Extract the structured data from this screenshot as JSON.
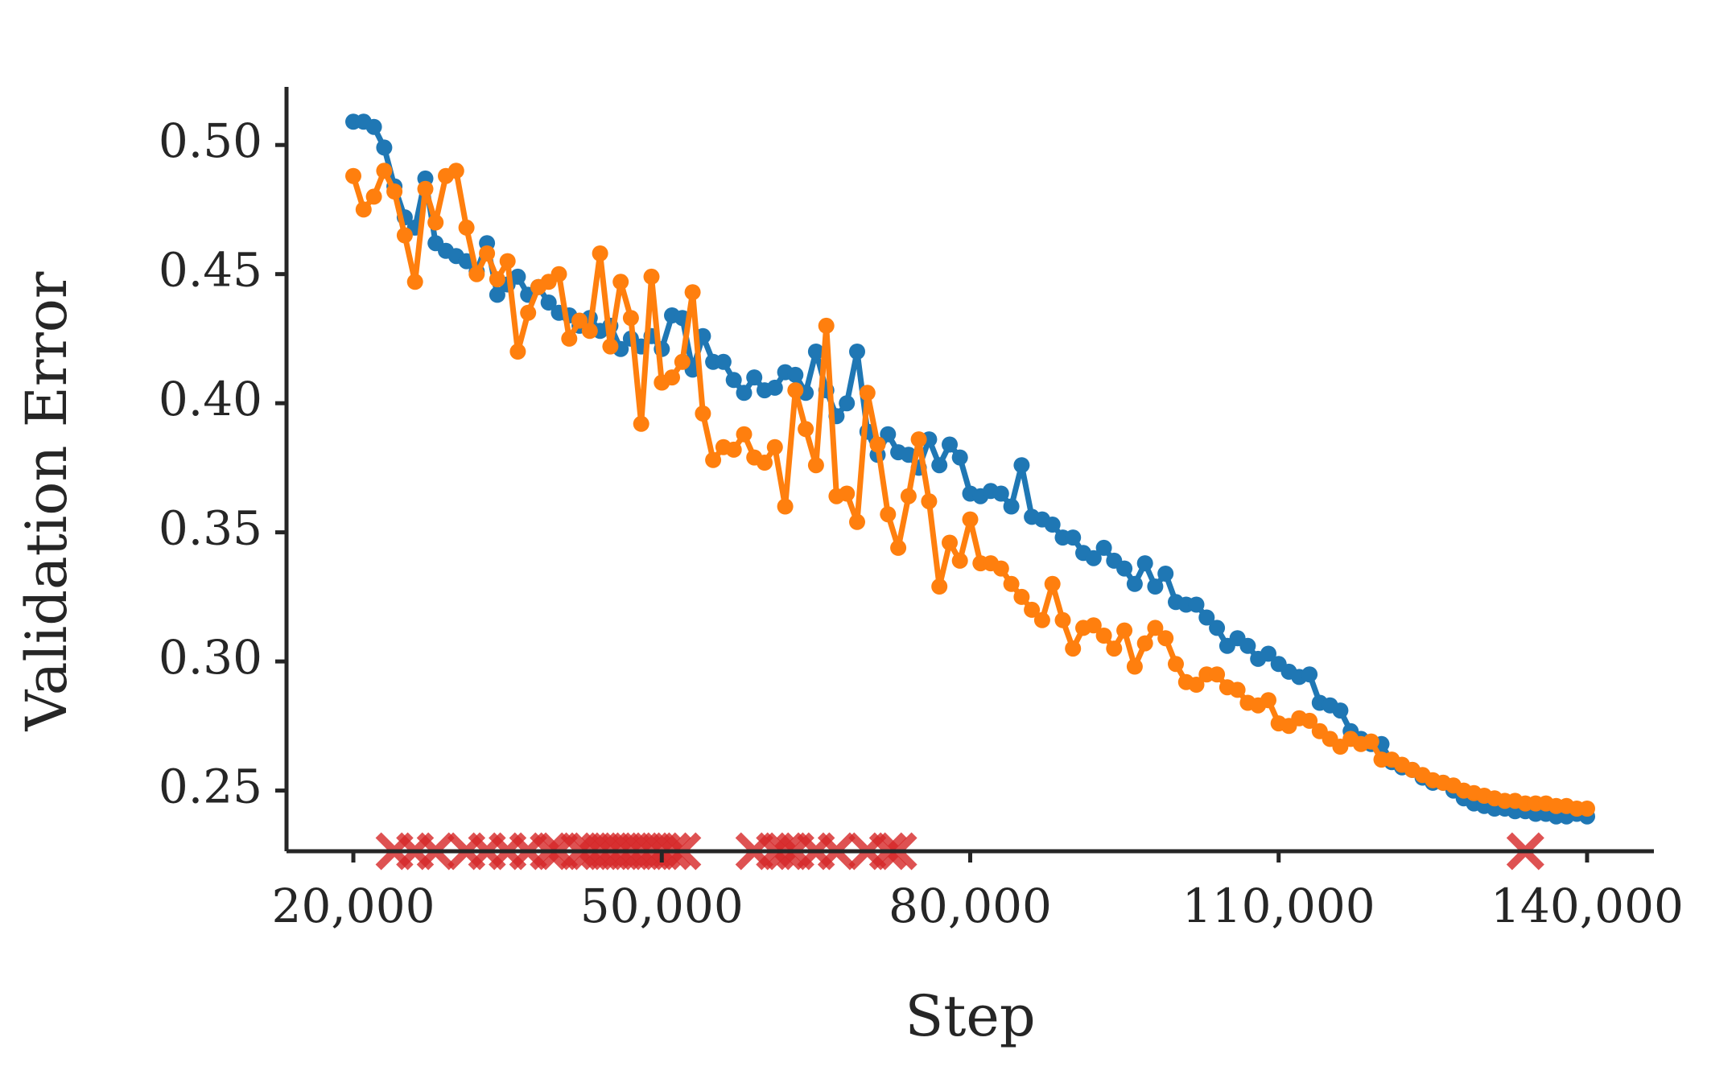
{
  "chart_data": {
    "type": "line",
    "title": "",
    "xlabel": "Step",
    "ylabel": "Validation Error",
    "xlim": [
      13500,
      146500
    ],
    "ylim": [
      0.2265,
      0.5225
    ],
    "xticks": [
      20000,
      50000,
      80000,
      110000,
      140000
    ],
    "xtick_labels": [
      "20,000",
      "50,000",
      "80,000",
      "110,000",
      "140,000"
    ],
    "yticks": [
      0.25,
      0.3,
      0.35,
      0.4,
      0.45,
      0.5
    ],
    "ytick_labels": [
      "0.25",
      "0.30",
      "0.35",
      "0.40",
      "0.45",
      "0.50"
    ],
    "grid": false,
    "legend": "none",
    "colors": {
      "series_1": "#1f77b4",
      "series_2": "#ff7f0e",
      "markers": "#d62728",
      "axis": "#262626"
    },
    "series": [
      {
        "color": "#1f77b4",
        "points": [
          [
            20000,
            0.509
          ],
          [
            21000,
            0.509
          ],
          [
            22000,
            0.507
          ],
          [
            23000,
            0.499
          ],
          [
            24000,
            0.484
          ],
          [
            25000,
            0.472
          ],
          [
            26000,
            0.468
          ],
          [
            27000,
            0.487
          ],
          [
            28000,
            0.462
          ],
          [
            29000,
            0.459
          ],
          [
            30000,
            0.457
          ],
          [
            31000,
            0.455
          ],
          [
            32000,
            0.451
          ],
          [
            33000,
            0.462
          ],
          [
            34000,
            0.442
          ],
          [
            35000,
            0.446
          ],
          [
            36000,
            0.449
          ],
          [
            37000,
            0.442
          ],
          [
            38000,
            0.445
          ],
          [
            39000,
            0.439
          ],
          [
            40000,
            0.435
          ],
          [
            41000,
            0.434
          ],
          [
            42000,
            0.43
          ],
          [
            43000,
            0.433
          ],
          [
            44000,
            0.428
          ],
          [
            45000,
            0.43
          ],
          [
            46000,
            0.421
          ],
          [
            47000,
            0.425
          ],
          [
            48000,
            0.422
          ],
          [
            49000,
            0.426
          ],
          [
            50000,
            0.421
          ],
          [
            51000,
            0.434
          ],
          [
            52000,
            0.433
          ],
          [
            53000,
            0.413
          ],
          [
            54000,
            0.426
          ],
          [
            55000,
            0.416
          ],
          [
            56000,
            0.416
          ],
          [
            57000,
            0.409
          ],
          [
            58000,
            0.404
          ],
          [
            59000,
            0.41
          ],
          [
            60000,
            0.405
          ],
          [
            61000,
            0.406
          ],
          [
            62000,
            0.412
          ],
          [
            63000,
            0.411
          ],
          [
            64000,
            0.404
          ],
          [
            65000,
            0.42
          ],
          [
            66000,
            0.405
          ],
          [
            67000,
            0.395
          ],
          [
            68000,
            0.4
          ],
          [
            69000,
            0.42
          ],
          [
            70000,
            0.389
          ],
          [
            71000,
            0.38
          ],
          [
            72000,
            0.388
          ],
          [
            73000,
            0.381
          ],
          [
            74000,
            0.38
          ],
          [
            75000,
            0.375
          ],
          [
            76000,
            0.386
          ],
          [
            77000,
            0.376
          ],
          [
            78000,
            0.384
          ],
          [
            79000,
            0.379
          ],
          [
            80000,
            0.365
          ],
          [
            81000,
            0.364
          ],
          [
            82000,
            0.366
          ],
          [
            83000,
            0.365
          ],
          [
            84000,
            0.36
          ],
          [
            85000,
            0.376
          ],
          [
            86000,
            0.356
          ],
          [
            87000,
            0.355
          ],
          [
            88000,
            0.353
          ],
          [
            89000,
            0.348
          ],
          [
            90000,
            0.348
          ],
          [
            91000,
            0.342
          ],
          [
            92000,
            0.34
          ],
          [
            93000,
            0.344
          ],
          [
            94000,
            0.339
          ],
          [
            95000,
            0.336
          ],
          [
            96000,
            0.33
          ],
          [
            97000,
            0.338
          ],
          [
            98000,
            0.329
          ],
          [
            99000,
            0.334
          ],
          [
            100000,
            0.323
          ],
          [
            101000,
            0.322
          ],
          [
            102000,
            0.322
          ],
          [
            103000,
            0.317
          ],
          [
            104000,
            0.313
          ],
          [
            105000,
            0.306
          ],
          [
            106000,
            0.309
          ],
          [
            107000,
            0.306
          ],
          [
            108000,
            0.301
          ],
          [
            109000,
            0.303
          ],
          [
            110000,
            0.299
          ],
          [
            111000,
            0.296
          ],
          [
            112000,
            0.294
          ],
          [
            113000,
            0.295
          ],
          [
            114000,
            0.284
          ],
          [
            115000,
            0.283
          ],
          [
            116000,
            0.281
          ],
          [
            117000,
            0.273
          ],
          [
            118000,
            0.27
          ],
          [
            119000,
            0.268
          ],
          [
            120000,
            0.268
          ],
          [
            121000,
            0.261
          ],
          [
            122000,
            0.259
          ],
          [
            123000,
            0.258
          ],
          [
            124000,
            0.255
          ],
          [
            125000,
            0.253
          ],
          [
            126000,
            0.253
          ],
          [
            127000,
            0.25
          ],
          [
            128000,
            0.247
          ],
          [
            129000,
            0.245
          ],
          [
            130000,
            0.244
          ],
          [
            131000,
            0.243
          ],
          [
            132000,
            0.243
          ],
          [
            133000,
            0.242
          ],
          [
            134000,
            0.242
          ],
          [
            135000,
            0.241
          ],
          [
            136000,
            0.241
          ],
          [
            137000,
            0.24
          ],
          [
            138000,
            0.24
          ],
          [
            139000,
            0.241
          ],
          [
            140000,
            0.24
          ]
        ]
      },
      {
        "color": "#ff7f0e",
        "points": [
          [
            20000,
            0.488
          ],
          [
            21000,
            0.475
          ],
          [
            22000,
            0.48
          ],
          [
            23000,
            0.49
          ],
          [
            24000,
            0.482
          ],
          [
            25000,
            0.465
          ],
          [
            26000,
            0.447
          ],
          [
            27000,
            0.483
          ],
          [
            28000,
            0.47
          ],
          [
            29000,
            0.488
          ],
          [
            30000,
            0.49
          ],
          [
            31000,
            0.468
          ],
          [
            32000,
            0.45
          ],
          [
            33000,
            0.458
          ],
          [
            34000,
            0.448
          ],
          [
            35000,
            0.455
          ],
          [
            36000,
            0.42
          ],
          [
            37000,
            0.435
          ],
          [
            38000,
            0.445
          ],
          [
            39000,
            0.447
          ],
          [
            40000,
            0.45
          ],
          [
            41000,
            0.425
          ],
          [
            42000,
            0.432
          ],
          [
            43000,
            0.428
          ],
          [
            44000,
            0.458
          ],
          [
            45000,
            0.422
          ],
          [
            46000,
            0.447
          ],
          [
            47000,
            0.433
          ],
          [
            48000,
            0.392
          ],
          [
            49000,
            0.449
          ],
          [
            50000,
            0.408
          ],
          [
            51000,
            0.41
          ],
          [
            52000,
            0.416
          ],
          [
            53000,
            0.443
          ],
          [
            54000,
            0.396
          ],
          [
            55000,
            0.378
          ],
          [
            56000,
            0.383
          ],
          [
            57000,
            0.382
          ],
          [
            58000,
            0.388
          ],
          [
            59000,
            0.379
          ],
          [
            60000,
            0.377
          ],
          [
            61000,
            0.383
          ],
          [
            62000,
            0.36
          ],
          [
            63000,
            0.405
          ],
          [
            64000,
            0.39
          ],
          [
            65000,
            0.376
          ],
          [
            66000,
            0.43
          ],
          [
            67000,
            0.364
          ],
          [
            68000,
            0.365
          ],
          [
            69000,
            0.354
          ],
          [
            70000,
            0.404
          ],
          [
            71000,
            0.384
          ],
          [
            72000,
            0.357
          ],
          [
            73000,
            0.344
          ],
          [
            74000,
            0.364
          ],
          [
            75000,
            0.386
          ],
          [
            76000,
            0.362
          ],
          [
            77000,
            0.329
          ],
          [
            78000,
            0.346
          ],
          [
            79000,
            0.339
          ],
          [
            80000,
            0.355
          ],
          [
            81000,
            0.338
          ],
          [
            82000,
            0.338
          ],
          [
            83000,
            0.336
          ],
          [
            84000,
            0.33
          ],
          [
            85000,
            0.325
          ],
          [
            86000,
            0.32
          ],
          [
            87000,
            0.316
          ],
          [
            88000,
            0.33
          ],
          [
            89000,
            0.316
          ],
          [
            90000,
            0.305
          ],
          [
            91000,
            0.313
          ],
          [
            92000,
            0.314
          ],
          [
            93000,
            0.31
          ],
          [
            94000,
            0.305
          ],
          [
            95000,
            0.312
          ],
          [
            96000,
            0.298
          ],
          [
            97000,
            0.307
          ],
          [
            98000,
            0.313
          ],
          [
            99000,
            0.309
          ],
          [
            100000,
            0.299
          ],
          [
            101000,
            0.292
          ],
          [
            102000,
            0.291
          ],
          [
            103000,
            0.295
          ],
          [
            104000,
            0.295
          ],
          [
            105000,
            0.29
          ],
          [
            106000,
            0.289
          ],
          [
            107000,
            0.284
          ],
          [
            108000,
            0.283
          ],
          [
            109000,
            0.285
          ],
          [
            110000,
            0.276
          ],
          [
            111000,
            0.275
          ],
          [
            112000,
            0.278
          ],
          [
            113000,
            0.277
          ],
          [
            114000,
            0.273
          ],
          [
            115000,
            0.27
          ],
          [
            116000,
            0.267
          ],
          [
            117000,
            0.27
          ],
          [
            118000,
            0.268
          ],
          [
            119000,
            0.269
          ],
          [
            120000,
            0.262
          ],
          [
            121000,
            0.262
          ],
          [
            122000,
            0.26
          ],
          [
            123000,
            0.258
          ],
          [
            124000,
            0.256
          ],
          [
            125000,
            0.254
          ],
          [
            126000,
            0.253
          ],
          [
            127000,
            0.252
          ],
          [
            128000,
            0.25
          ],
          [
            129000,
            0.249
          ],
          [
            130000,
            0.248
          ],
          [
            131000,
            0.247
          ],
          [
            132000,
            0.246
          ],
          [
            133000,
            0.246
          ],
          [
            134000,
            0.245
          ],
          [
            135000,
            0.245
          ],
          [
            136000,
            0.245
          ],
          [
            137000,
            0.244
          ],
          [
            138000,
            0.244
          ],
          [
            139000,
            0.243
          ],
          [
            140000,
            0.243
          ]
        ]
      }
    ],
    "x_markers": {
      "color": "#d62728",
      "y": 0.2265,
      "x": [
        24000,
        26000,
        28000,
        31000,
        33000,
        35000,
        37000,
        39000,
        40000,
        42000,
        43000,
        44000,
        45000,
        46000,
        47000,
        48000,
        49000,
        50000,
        51000,
        52000,
        59000,
        61000,
        62000,
        63000,
        65000,
        67000,
        70000,
        72000,
        73000,
        134000
      ]
    }
  }
}
